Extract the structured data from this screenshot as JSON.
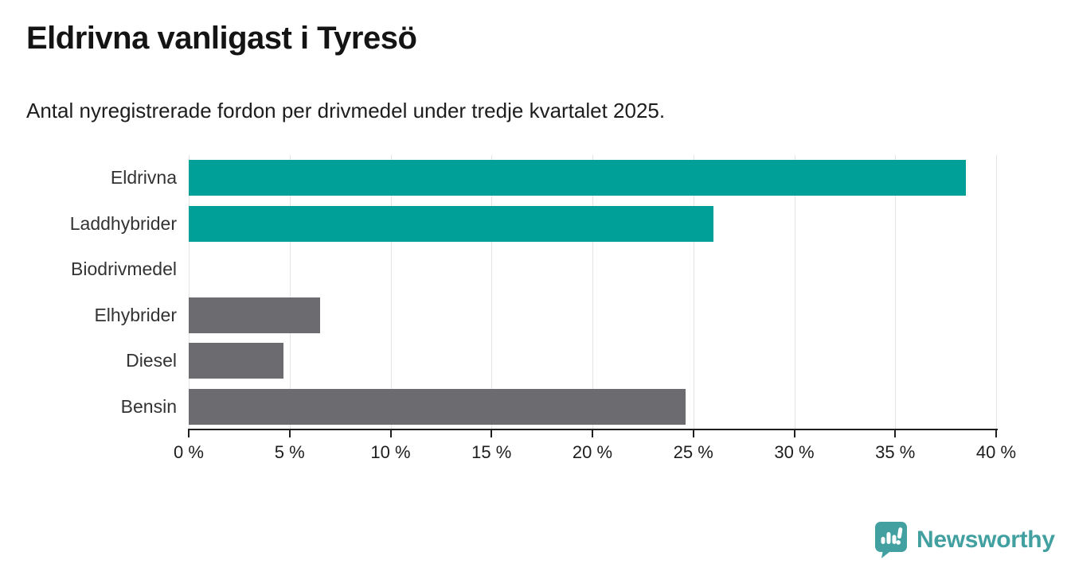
{
  "header": {
    "title": "Eldrivna vanligast i Tyresö",
    "subtitle": "Antal nyregistrerade fordon per drivmedel under tredje kvartalet 2025."
  },
  "chart_data": {
    "type": "bar",
    "orientation": "horizontal",
    "title": "Eldrivna vanligast i Tyresö",
    "subtitle": "Antal nyregistrerade fordon per drivmedel under tredje kvartalet 2025.",
    "categories": [
      "Eldrivna",
      "Laddhybrider",
      "Biodrivmedel",
      "Elhybrider",
      "Diesel",
      "Bensin"
    ],
    "values": [
      38.5,
      26.0,
      0,
      6.5,
      4.7,
      24.6
    ],
    "unit": "%",
    "xlim": [
      0,
      40
    ],
    "x_ticks": [
      0,
      5,
      10,
      15,
      20,
      25,
      30,
      35,
      40
    ],
    "x_tick_labels": [
      "0 %",
      "5 %",
      "10 %",
      "15 %",
      "20 %",
      "25 %",
      "30 %",
      "35 %",
      "40 %"
    ],
    "bar_colors": [
      "#00a099",
      "#00a099",
      "#6c6b70",
      "#6c6b70",
      "#6c6b70",
      "#6c6b70"
    ],
    "grid": "vertical",
    "legend": "none",
    "colors": {
      "electric_accent": "#00a099",
      "fossil_neutral": "#6c6b70",
      "gridline": "#e4e4e4",
      "axis": "#1f1f1f"
    }
  },
  "footer": {
    "brand": "Newsworthy",
    "brand_color": "#43a0a0",
    "logo_icon": "newsworthy-speech-bubble-chart-icon"
  }
}
